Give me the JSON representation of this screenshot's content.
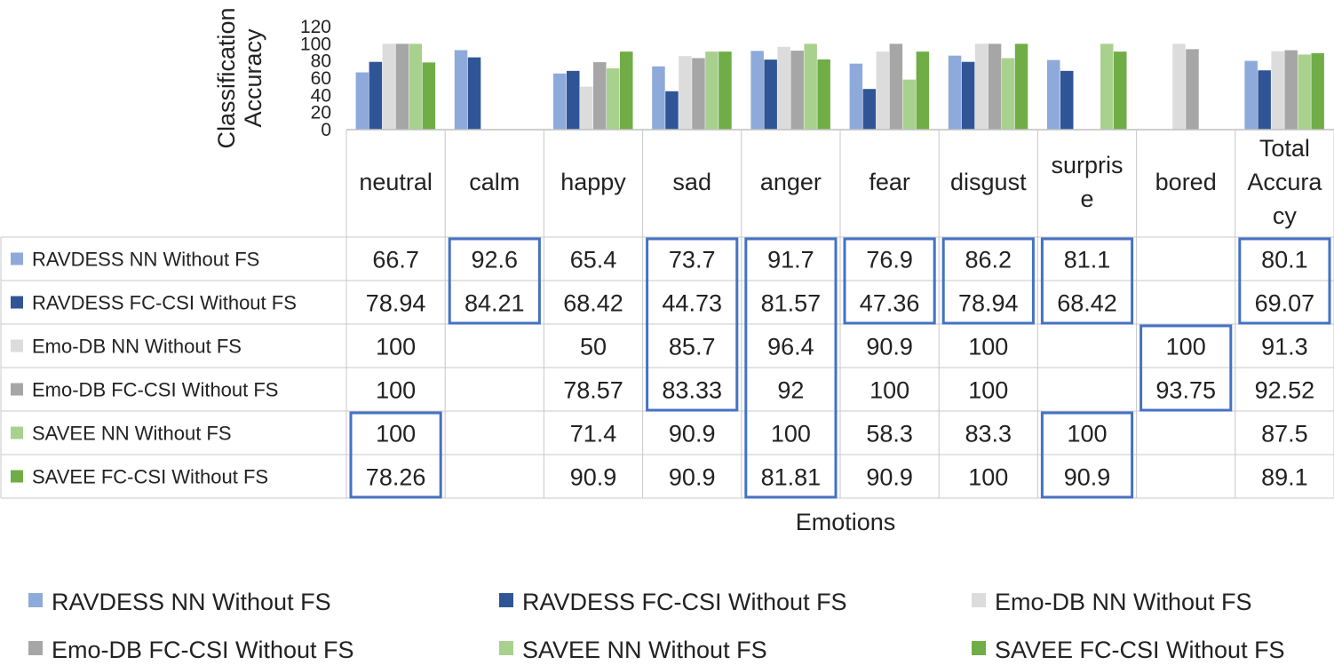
{
  "chart_data": {
    "type": "bar",
    "ylabel": "Classification Accuracy",
    "xlabel": "Emotions",
    "ylim": [
      0,
      120
    ],
    "yticks": [
      "0",
      "20",
      "40",
      "60",
      "80",
      "100",
      "120"
    ],
    "categories": [
      [
        "neutral"
      ],
      [
        "calm"
      ],
      [
        "happy"
      ],
      [
        "sad"
      ],
      [
        "anger"
      ],
      [
        "fear"
      ],
      [
        "disgust"
      ],
      [
        "surpris",
        "e"
      ],
      [
        "bored"
      ],
      [
        "Total",
        "Accura",
        "cy"
      ]
    ],
    "series": [
      {
        "name": "RAVDESS NN Without FS",
        "color": "#8eaadb",
        "labels": [
          "66.7",
          "92.6",
          "65.4",
          "73.7",
          "91.7",
          "76.9",
          "86.2",
          "81.1",
          "",
          "80.1"
        ],
        "values": [
          66.7,
          92.6,
          65.4,
          73.7,
          91.7,
          76.9,
          86.2,
          81.1,
          null,
          80.1
        ]
      },
      {
        "name": "RAVDESS FC-CSI Without FS",
        "color": "#2f5597",
        "labels": [
          "78.94",
          "84.21",
          "68.42",
          "44.73",
          "81.57",
          "47.36",
          "78.94",
          "68.42",
          "",
          "69.07"
        ],
        "values": [
          78.94,
          84.21,
          68.42,
          44.73,
          81.57,
          47.36,
          78.94,
          68.42,
          null,
          69.07
        ]
      },
      {
        "name": "Emo-DB NN Without FS",
        "color": "#dcdcdc",
        "labels": [
          "100",
          "",
          "50",
          "85.7",
          "96.4",
          "90.9",
          "100",
          "",
          "100",
          "91.3"
        ],
        "values": [
          100,
          null,
          50,
          85.7,
          96.4,
          90.9,
          100,
          null,
          100,
          91.3
        ]
      },
      {
        "name": "Emo-DB FC-CSI Without FS",
        "color": "#a6a6a6",
        "labels": [
          "100",
          "",
          "78.57",
          "83.33",
          "92",
          "100",
          "100",
          "",
          "93.75",
          "92.52"
        ],
        "values": [
          100,
          null,
          78.57,
          83.33,
          92,
          100,
          100,
          null,
          93.75,
          92.52
        ]
      },
      {
        "name": "SAVEE NN Without FS",
        "color": "#a9d18e",
        "labels": [
          "100",
          "",
          "71.4",
          "90.9",
          "100",
          "58.3",
          "83.3",
          "100",
          "",
          "87.5"
        ],
        "values": [
          100,
          null,
          71.4,
          90.9,
          100,
          58.3,
          83.3,
          100,
          null,
          87.5
        ]
      },
      {
        "name": "SAVEE FC-CSI Without FS",
        "color": "#70ad47",
        "labels": [
          "78.26",
          "",
          "90.9",
          "90.9",
          "81.81",
          "90.9",
          "100",
          "90.9",
          "",
          "89.1"
        ],
        "values": [
          78.26,
          null,
          90.9,
          90.9,
          81.81,
          90.9,
          100,
          90.9,
          null,
          89.1
        ]
      }
    ],
    "highlight_boxes": [
      {
        "category": "calm",
        "series": [
          "RAVDESS NN Without FS",
          "RAVDESS FC-CSI Without FS"
        ]
      },
      {
        "category": "sad",
        "series": [
          "RAVDESS NN Without FS",
          "RAVDESS FC-CSI Without FS",
          "Emo-DB NN Without FS",
          "Emo-DB FC-CSI Without FS"
        ]
      },
      {
        "category": "anger",
        "series": [
          "RAVDESS NN Without FS",
          "RAVDESS FC-CSI Without FS",
          "Emo-DB NN Without FS",
          "Emo-DB FC-CSI Without FS",
          "SAVEE NN Without FS",
          "SAVEE FC-CSI Without FS"
        ]
      },
      {
        "category": "fear",
        "series": [
          "RAVDESS NN Without FS",
          "RAVDESS FC-CSI Without FS"
        ]
      },
      {
        "category": "disgust",
        "series": [
          "RAVDESS NN Without FS",
          "RAVDESS FC-CSI Without FS"
        ]
      },
      {
        "category": "surprise",
        "series": [
          "RAVDESS NN Without FS",
          "RAVDESS FC-CSI Without FS"
        ]
      },
      {
        "category": "Total Accuracy",
        "series": [
          "RAVDESS NN Without FS",
          "RAVDESS FC-CSI Without FS"
        ]
      },
      {
        "category": "bored",
        "series": [
          "Emo-DB NN Without FS",
          "Emo-DB FC-CSI Without FS"
        ]
      },
      {
        "category": "neutral",
        "series": [
          "SAVEE NN Without FS",
          "SAVEE FC-CSI Without FS"
        ]
      },
      {
        "category": "surprise",
        "series": [
          "SAVEE NN Without FS",
          "SAVEE FC-CSI Without FS"
        ]
      }
    ],
    "highlight_color": "#4472c4",
    "grid": false,
    "legend_position": "bottom"
  }
}
